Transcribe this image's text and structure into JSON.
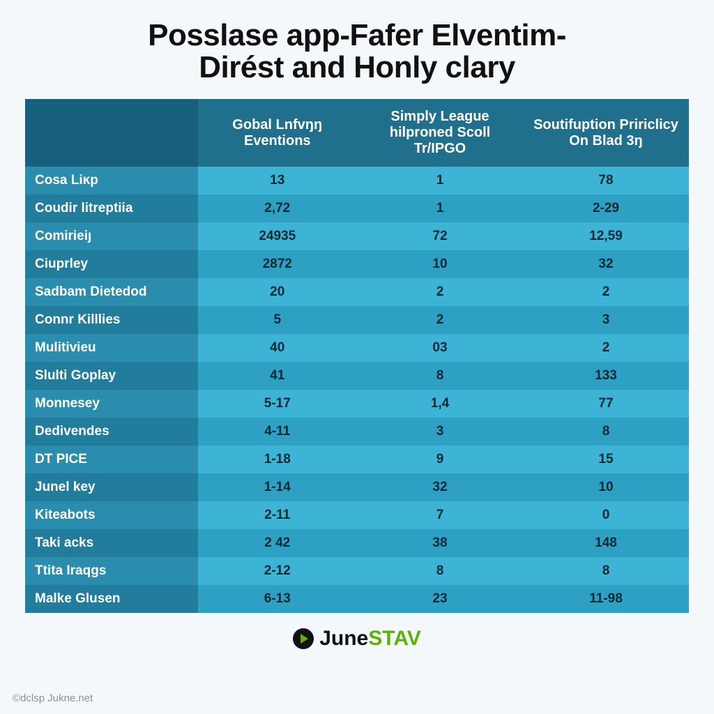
{
  "title": {
    "line1": "Posslase app-Fafer Elventim-",
    "line2": "Dirést and Honly clary"
  },
  "table": {
    "header_bg_corner": "#17607d",
    "header_bg": "#1f6f8d",
    "row_light_bg": "#3db3d6",
    "row_dark_bg": "#2ea0c4",
    "rowhead_light_bg": "#2a8dae",
    "rowhead_dark_bg": "#227d9c",
    "header_color": "#ffffff",
    "cell_color": "#0a2a33",
    "rowhead_color": "#ffffff",
    "header_fontsize": 20,
    "cell_fontsize": 19,
    "col_widths_pct": [
      26,
      24,
      25,
      25
    ],
    "columns": [
      "",
      "Gobal Lnfvŋŋ Eventions",
      "Simply League hilproned Scoll Tr/IPGO",
      "Soutifuption Pririclicy On Blad 3ŋ"
    ],
    "rows": [
      {
        "label": "Cosa Liĸp",
        "values": [
          "13",
          "1",
          "78"
        ]
      },
      {
        "label": "Coudir litreptiia",
        "values": [
          "2,72",
          "1",
          "2-29"
        ]
      },
      {
        "label": "Comirieiȷ",
        "values": [
          "24935",
          "72",
          "12,59"
        ]
      },
      {
        "label": "Ciuprley",
        "values": [
          "2872",
          "10",
          "32"
        ]
      },
      {
        "label": "Sadbam Dietedod",
        "values": [
          "20",
          "2",
          "2"
        ]
      },
      {
        "label": "Connr Killlies",
        "values": [
          "5",
          "2",
          "3"
        ]
      },
      {
        "label": "Mulitivieu",
        "values": [
          "40",
          "03",
          "2"
        ]
      },
      {
        "label": "Slulti Goplay",
        "values": [
          "41",
          "8",
          "133"
        ]
      },
      {
        "label": "Monnesey",
        "values": [
          "5-17",
          "1,4",
          "77"
        ]
      },
      {
        "label": "Dedivendes",
        "values": [
          "4-11",
          "3",
          "8"
        ]
      },
      {
        "label": "DT PICE",
        "values": [
          "1-18",
          "9",
          "15"
        ]
      },
      {
        "label": "Junel key",
        "values": [
          "1-14",
          "32",
          "10"
        ]
      },
      {
        "label": "Kiteabots",
        "values": [
          "2-11",
          "7",
          "0"
        ]
      },
      {
        "label": "Taki acks",
        "values": [
          "2 42",
          "38",
          "148"
        ]
      },
      {
        "label": "Ttita Iraqgs",
        "values": [
          "2-12",
          "8",
          "8"
        ]
      },
      {
        "label": "Malke Glusen",
        "values": [
          "6-13",
          "23",
          "11-98"
        ]
      }
    ]
  },
  "brand": {
    "name": "June",
    "accent": "STAV"
  },
  "credit": "©dclsp Jukne.net"
}
